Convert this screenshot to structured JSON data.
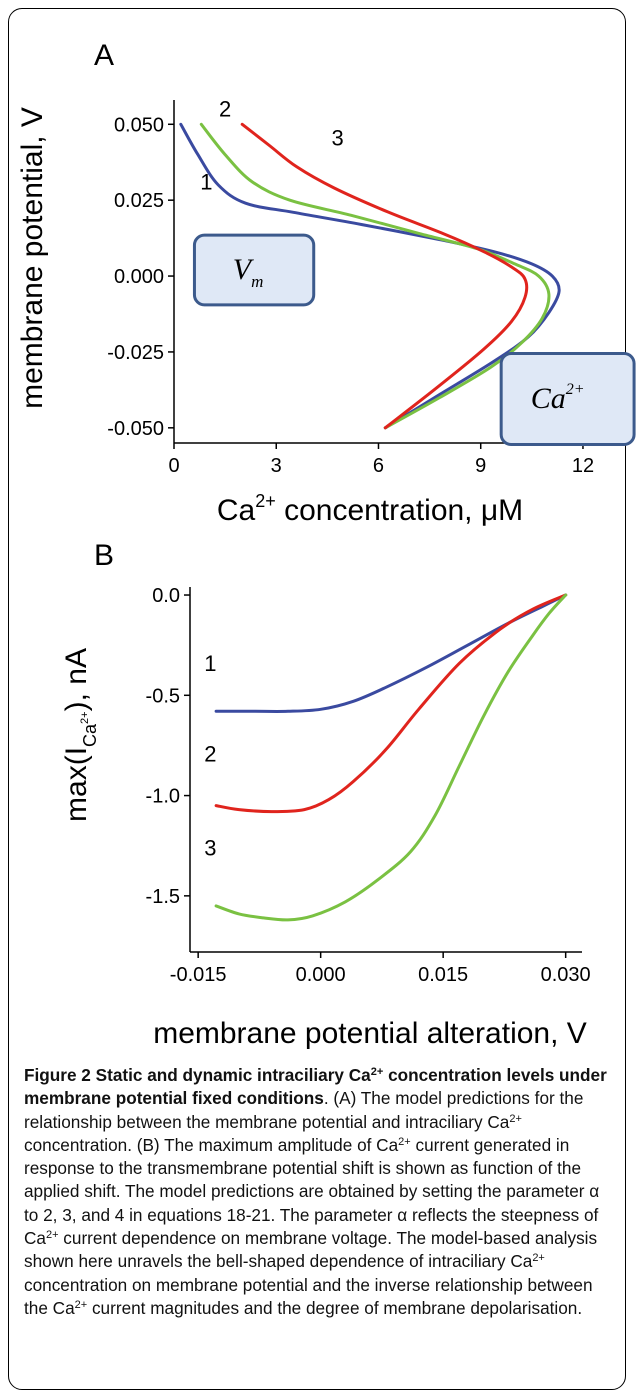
{
  "chart_data": [
    {
      "panel": "A",
      "type": "line",
      "xlabel": "Ca",
      "xlabel_sup": "2+",
      "xlabel_rest": " concentration, μM",
      "ylabel": "membrane potential, V",
      "xlim": [
        0,
        12.5
      ],
      "ylim": [
        -0.055,
        0.058
      ],
      "xticks": [
        0,
        3,
        6,
        9,
        12
      ],
      "xtick_labels": [
        "0",
        "3",
        "6",
        "9",
        "12"
      ],
      "yticks": [
        0.05,
        0.025,
        0.0,
        -0.025,
        -0.05
      ],
      "ytick_labels": [
        "0.050",
        "0.025",
        "0.000",
        "-0.025",
        "-0.050"
      ],
      "series": [
        {
          "name": "1",
          "color": "#3a4aa0",
          "x": [
            0.2,
            0.7,
            1.3,
            2.1,
            3.5,
            5.5,
            7.8,
            9.4,
            10.5,
            11.1,
            11.3,
            11.0,
            10.4,
            9.4,
            7.8,
            6.2
          ],
          "y": [
            0.05,
            0.04,
            0.03,
            0.024,
            0.021,
            0.017,
            0.012,
            0.008,
            0.004,
            0.0,
            -0.005,
            -0.012,
            -0.02,
            -0.028,
            -0.039,
            -0.05
          ]
        },
        {
          "name": "2",
          "color": "#7ac142",
          "x": [
            0.8,
            1.5,
            2.3,
            3.4,
            5.2,
            7.2,
            8.9,
            10.0,
            10.7,
            11.0,
            10.8,
            10.2,
            9.3,
            7.8,
            6.2
          ],
          "y": [
            0.05,
            0.04,
            0.031,
            0.025,
            0.02,
            0.014,
            0.009,
            0.004,
            0.0,
            -0.006,
            -0.014,
            -0.022,
            -0.03,
            -0.04,
            -0.05
          ]
        },
        {
          "name": "3",
          "color": "#e0241d",
          "x": [
            2.0,
            2.8,
            3.6,
            4.7,
            6.3,
            7.9,
            9.1,
            9.9,
            10.3,
            10.3,
            9.9,
            9.1,
            7.8,
            6.2
          ],
          "y": [
            0.05,
            0.043,
            0.036,
            0.029,
            0.021,
            0.014,
            0.008,
            0.003,
            -0.001,
            -0.007,
            -0.015,
            -0.024,
            -0.036,
            -0.05
          ]
        }
      ],
      "curve_labels": [
        {
          "text": "1",
          "x": 0.95,
          "y": 0.0285
        },
        {
          "text": "2",
          "x": 1.5,
          "y": 0.0525
        },
        {
          "text": "3",
          "x": 4.8,
          "y": 0.043
        }
      ],
      "insets": [
        {
          "name": "vm-box",
          "text": "V",
          "sub": "m",
          "x0": 0.6,
          "x1": 4.1,
          "y0": 0.0135,
          "y1": -0.0095
        },
        {
          "name": "ca-box",
          "text": "Ca",
          "sup": "2+",
          "x0": 9.6,
          "x1": 13.5,
          "y0": -0.0255,
          "y1": -0.0555
        }
      ]
    },
    {
      "panel": "B",
      "type": "line",
      "xlabel": "membrane potential alteration, V",
      "ylabel_main": "max(I",
      "ylabel_sub": "Ca",
      "ylabel_subsup": "2+",
      "ylabel_tail": "), nA",
      "xlim": [
        -0.016,
        0.032
      ],
      "ylim": [
        -1.78,
        0.04
      ],
      "xticks": [
        -0.015,
        0.0,
        0.015,
        0.03
      ],
      "xtick_labels": [
        "-0.015",
        "0.000",
        "0.015",
        "0.030"
      ],
      "yticks": [
        0.0,
        -0.5,
        -1.0,
        -1.5
      ],
      "ytick_labels": [
        "0.0",
        "-0.5",
        "-1.0",
        "-1.5"
      ],
      "series": [
        {
          "name": "1",
          "color": "#3a4aa0",
          "x": [
            -0.0128,
            -0.008,
            -0.004,
            0.0,
            0.004,
            0.008,
            0.013,
            0.018,
            0.023,
            0.027,
            0.03
          ],
          "y": [
            -0.58,
            -0.58,
            -0.58,
            -0.57,
            -0.53,
            -0.46,
            -0.36,
            -0.25,
            -0.14,
            -0.06,
            0.0
          ]
        },
        {
          "name": "2",
          "color": "#e0241d",
          "x": [
            -0.0128,
            -0.01,
            -0.006,
            -0.002,
            0.001,
            0.004,
            0.008,
            0.012,
            0.017,
            0.022,
            0.026,
            0.03
          ],
          "y": [
            -1.05,
            -1.07,
            -1.08,
            -1.07,
            -1.02,
            -0.93,
            -0.77,
            -0.57,
            -0.34,
            -0.17,
            -0.07,
            0.0
          ]
        },
        {
          "name": "3",
          "color": "#7ac142",
          "x": [
            -0.0128,
            -0.01,
            -0.007,
            -0.004,
            -0.001,
            0.003,
            0.007,
            0.011,
            0.014,
            0.017,
            0.02,
            0.023,
            0.026,
            0.028,
            0.03
          ],
          "y": [
            -1.55,
            -1.59,
            -1.61,
            -1.62,
            -1.6,
            -1.53,
            -1.42,
            -1.28,
            -1.1,
            -0.85,
            -0.6,
            -0.38,
            -0.2,
            -0.09,
            0.0
          ]
        }
      ],
      "curve_labels": [
        {
          "text": "1",
          "x": -0.0135,
          "y": -0.38
        },
        {
          "text": "2",
          "x": -0.0135,
          "y": -0.83
        },
        {
          "text": "3",
          "x": -0.0135,
          "y": -1.3
        }
      ]
    }
  ],
  "panel_letters": {
    "a": "A",
    "b": "B"
  },
  "caption": {
    "label": "Figure 2",
    "title_pre": " Static and dynamic intraciliary Ca",
    "title_sup": "2+",
    "title_post": " concentration levels under membrane potential fixed conditions",
    "p1": ". (A) The model predictions for the relationship between the membrane potential and intraciliary Ca",
    "s1": "2+",
    "p2": " concentration. (B) The maximum amplitude of Ca",
    "s2": "2+",
    "p3": " current generated in response to the transmembrane potential shift is shown as function of the applied shift. The model predictions are obtained by setting the parameter α to 2, 3, and 4 in equations 18-21. The parameter α reflects the steepness of Ca",
    "s3": "2+",
    "p4": " current dependence on membrane voltage. The model-based analysis shown here unravels the bell-shaped dependence of intraciliary Ca",
    "s4": "2+",
    "p5": " concentration on membrane potential and the inverse relationship between the Ca",
    "s5": "2+",
    "p6": " current magnitudes and the degree of membrane depolarisation."
  }
}
